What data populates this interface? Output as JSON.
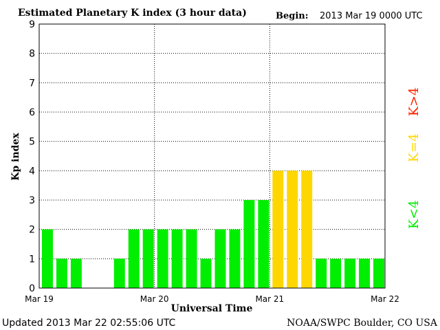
{
  "header": {
    "title": "Estimated Planetary K index (3 hour data)",
    "begin_label": "Begin:",
    "begin_value": "2013 Mar 19 0000 UTC"
  },
  "footer": {
    "updated": "Updated 2013 Mar 22 02:55:06 UTC",
    "source": "NOAA/SWPC Boulder, CO USA"
  },
  "legend": {
    "below": "K<4",
    "equal": "K=4",
    "above": "K>4"
  },
  "colors": {
    "below": "#00ee00",
    "equal": "#ffd700",
    "above": "#ff2200",
    "grid": "#000000"
  },
  "chart_data": {
    "type": "bar",
    "ylabel": "Kp index",
    "xlabel": "Universal Time",
    "ylim": [
      0,
      9
    ],
    "yticks": [
      "0",
      "1",
      "2",
      "3",
      "4",
      "5",
      "6",
      "7",
      "8",
      "9"
    ],
    "xticks": [
      "Mar 19",
      "Mar 20",
      "Mar 21",
      "Mar 22"
    ],
    "bins_per_day": 8,
    "values": [
      2,
      1,
      1,
      0,
      0,
      1,
      2,
      2,
      2,
      2,
      2,
      1,
      2,
      2,
      3,
      3,
      4,
      4,
      4,
      1,
      1,
      1,
      1,
      1
    ],
    "grid": "dotted"
  }
}
